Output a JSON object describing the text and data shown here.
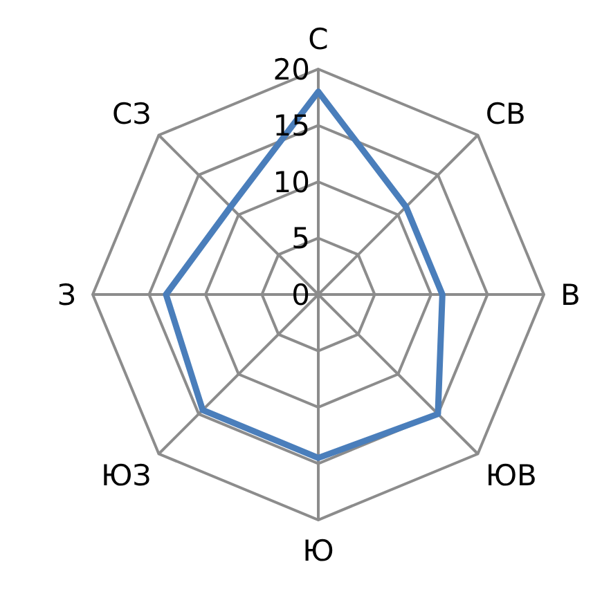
{
  "chart_data": {
    "type": "radar",
    "categories": [
      "С",
      "СВ",
      "В",
      "ЮВ",
      "Ю",
      "ЮЗ",
      "З",
      "СЗ"
    ],
    "series": [
      {
        "color": "#4a7ebb",
        "values": [
          18,
          11,
          11,
          15,
          14.5,
          14.5,
          13.5,
          11
        ]
      }
    ],
    "ylim": [
      0,
      20
    ],
    "yticks": [
      0,
      5,
      10,
      15,
      20
    ],
    "grid": true,
    "marker": "none"
  }
}
